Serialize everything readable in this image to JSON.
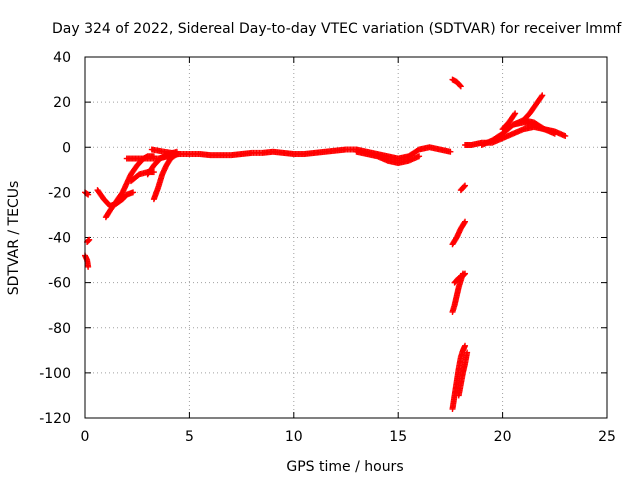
{
  "chart_data": {
    "type": "scatter",
    "title": "Day 324 of 2022, Sidereal Day-to-day VTEC variation (SDTVAR) for receiver lmmf",
    "xlabel": "GPS time / hours",
    "ylabel": "SDTVAR / TECUs",
    "xlim": [
      0,
      25
    ],
    "ylim": [
      -120,
      40
    ],
    "xticks": [
      0,
      5,
      10,
      15,
      20,
      25
    ],
    "yticks": [
      -120,
      -100,
      -80,
      -60,
      -40,
      -20,
      0,
      20,
      40
    ],
    "grid": true,
    "marker": "plus",
    "color": "#ff0000",
    "series": [
      {
        "name": "trace-1",
        "x": [
          0.0,
          0.1,
          0.15
        ],
        "y": [
          -48,
          -50,
          -53
        ]
      },
      {
        "name": "trace-2",
        "x": [
          0.1,
          0.2
        ],
        "y": [
          -42,
          -41
        ]
      },
      {
        "name": "trace-3",
        "x": [
          0.0,
          0.15
        ],
        "y": [
          -20,
          -21
        ]
      },
      {
        "name": "trace-4",
        "x": [
          0.6,
          0.9,
          1.2,
          1.5,
          1.8,
          2.0,
          2.3
        ],
        "y": [
          -19,
          -23,
          -26,
          -25,
          -23,
          -21,
          -20
        ]
      },
      {
        "name": "trace-5",
        "x": [
          1.0,
          1.2,
          1.5,
          1.8,
          2.0,
          2.2,
          2.5,
          2.8,
          3.0,
          3.3
        ],
        "y": [
          -31,
          -28,
          -24,
          -20,
          -16,
          -12,
          -8,
          -5,
          -4,
          -4
        ]
      },
      {
        "name": "trace-6",
        "x": [
          2.0,
          2.5,
          3.0,
          3.5,
          4.0,
          4.5
        ],
        "y": [
          -5,
          -5,
          -5,
          -5,
          -4,
          -3
        ]
      },
      {
        "name": "trace-7",
        "x": [
          2.2,
          2.6,
          3.0,
          3.3
        ],
        "y": [
          -15,
          -12,
          -11,
          -11
        ]
      },
      {
        "name": "trace-8",
        "x": [
          3.3,
          3.5,
          3.7,
          3.9,
          4.1,
          4.4
        ],
        "y": [
          -23,
          -18,
          -12,
          -8,
          -5,
          -3
        ]
      },
      {
        "name": "trace-9",
        "x": [
          3.0,
          3.3,
          3.6,
          4.0,
          4.4
        ],
        "y": [
          -12,
          -8,
          -5,
          -3,
          -2
        ]
      },
      {
        "name": "trace-10",
        "x": [
          3.2,
          3.8,
          4.5
        ],
        "y": [
          -1,
          -2,
          -3
        ]
      },
      {
        "name": "trace-11",
        "x": [
          4.5,
          5.0,
          5.5,
          6.0,
          6.5,
          7.0,
          7.5,
          8.0,
          8.5,
          9.0,
          9.5,
          10.0,
          10.5,
          11.0,
          11.5,
          12.0,
          12.5,
          13.0,
          13.5,
          14.0,
          14.5,
          15.0,
          15.5,
          16.0,
          16.5,
          17.0,
          17.5
        ],
        "y": [
          -3,
          -3,
          -3,
          -3.5,
          -3.5,
          -3.5,
          -3,
          -2.5,
          -2.5,
          -2,
          -2.5,
          -3,
          -3,
          -2.5,
          -2,
          -1.5,
          -1,
          -1,
          -2,
          -3,
          -4,
          -5,
          -4,
          -1,
          0,
          -1,
          -2
        ]
      },
      {
        "name": "trace-12",
        "x": [
          13.0,
          13.5,
          14.0,
          14.5,
          15.0,
          15.5,
          16.0
        ],
        "y": [
          -2,
          -3,
          -4,
          -6,
          -7,
          -6,
          -4
        ]
      },
      {
        "name": "trace-13",
        "x": [
          17.6,
          17.8,
          18.0
        ],
        "y": [
          30,
          29,
          27
        ]
      },
      {
        "name": "trace-14",
        "x": [
          18.0,
          18.2
        ],
        "y": [
          -19,
          -17
        ]
      },
      {
        "name": "trace-15",
        "x": [
          17.6,
          17.8,
          18.0,
          18.2
        ],
        "y": [
          -43,
          -40,
          -36,
          -33
        ]
      },
      {
        "name": "trace-16",
        "x": [
          17.7,
          17.9,
          18.1,
          18.2
        ],
        "y": [
          -60,
          -58,
          -57,
          -56
        ]
      },
      {
        "name": "trace-17",
        "x": [
          17.6,
          17.7,
          17.8,
          17.9,
          18.0,
          18.1
        ],
        "y": [
          -73,
          -70,
          -66,
          -62,
          -59,
          -56
        ]
      },
      {
        "name": "trace-18",
        "x": [
          17.6,
          17.7,
          17.8,
          17.9,
          18.0,
          18.1,
          18.2
        ],
        "y": [
          -116,
          -110,
          -104,
          -98,
          -93,
          -90,
          -88
        ]
      },
      {
        "name": "trace-19",
        "x": [
          17.9,
          18.0,
          18.1,
          18.2,
          18.3
        ],
        "y": [
          -110,
          -105,
          -100,
          -96,
          -91
        ]
      },
      {
        "name": "trace-20",
        "x": [
          18.2,
          18.5,
          19.0,
          19.5,
          20.0,
          20.5,
          21.0,
          21.5,
          22.0,
          22.5,
          23.0
        ],
        "y": [
          1,
          1,
          2,
          2,
          4,
          6,
          8,
          9,
          8,
          7,
          5
        ]
      },
      {
        "name": "trace-21",
        "x": [
          19.0,
          19.5,
          20.0,
          20.5,
          21.0,
          21.5,
          22.0
        ],
        "y": [
          1,
          3,
          6,
          10,
          12,
          11,
          8
        ]
      },
      {
        "name": "trace-22",
        "x": [
          20.0,
          20.3,
          20.6
        ],
        "y": [
          8,
          11,
          15
        ]
      },
      {
        "name": "trace-23",
        "x": [
          21.0,
          21.3,
          21.6,
          21.9
        ],
        "y": [
          12,
          15,
          19,
          23
        ]
      },
      {
        "name": "trace-24",
        "x": [
          20.5,
          21.0,
          21.5,
          22.0,
          22.5
        ],
        "y": [
          10,
          11,
          10,
          8,
          6
        ]
      }
    ]
  }
}
